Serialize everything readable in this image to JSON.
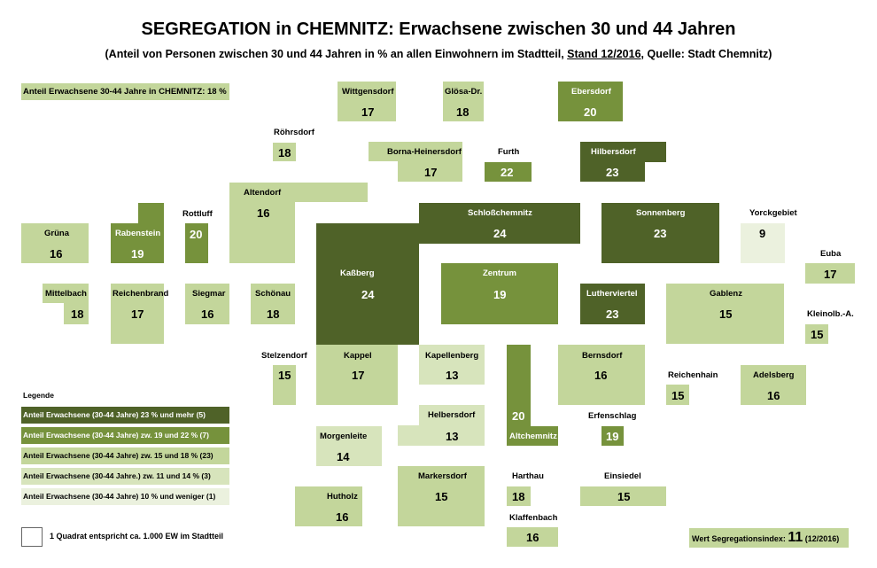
{
  "title": "SEGREGATION in CHEMNITZ: Erwachsene zwischen 30 und 44 Jahren",
  "subtitle": {
    "part1": "(Anteil von Personen zwischen 30 und 44 Jahren in % an allen Einwohnern im Stadtteil, ",
    "stand": "Stand 12/2016",
    "part2": ", Quelle: Stadt Chemnitz)"
  },
  "overall": "Anteil Erwachsene 30-44 Jahre in CHEMNITZ: 18 %",
  "colors": {
    "c1": "#4f6228",
    "c2": "#76923c",
    "c3": "#c3d69b",
    "c4": "#d7e4bc",
    "c5": "#ebf1de"
  },
  "districts": {
    "wittgensdorf": {
      "name": "Wittgensdorf",
      "value": "17"
    },
    "gloesa": {
      "name": "Glösa-Dr.",
      "value": "18"
    },
    "ebersdorf": {
      "name": "Ebersdorf",
      "value": "20"
    },
    "roehrsdorf": {
      "name": "Röhrsdorf",
      "value": "18"
    },
    "borna": {
      "name": "Borna-Heinersdorf",
      "value": "17"
    },
    "furth": {
      "name": "Furth",
      "value": "22"
    },
    "hilbersdorf": {
      "name": "Hilbersdorf",
      "value": "23"
    },
    "altendorf": {
      "name": "Altendorf",
      "value": "16"
    },
    "rottluff": {
      "name": "Rottluff",
      "value": "20"
    },
    "schlosschemnitz": {
      "name": "Schloßchemnitz",
      "value": "24"
    },
    "sonnenberg": {
      "name": "Sonnenberg",
      "value": "23"
    },
    "yorckgebiet": {
      "name": "Yorckgebiet",
      "value": "9"
    },
    "gruena": {
      "name": "Grüna",
      "value": "16"
    },
    "rabenstein": {
      "name": "Rabenstein",
      "value": "19"
    },
    "euba": {
      "name": "Euba",
      "value": "17"
    },
    "kassberg": {
      "name": "Kaßberg",
      "value": "24"
    },
    "zentrum": {
      "name": "Zentrum",
      "value": "19"
    },
    "mittelbach": {
      "name": "Mittelbach",
      "value": "18"
    },
    "reichenbrand": {
      "name": "Reichenbrand",
      "value": "17"
    },
    "siegmar": {
      "name": "Siegmar",
      "value": "16"
    },
    "schoenau": {
      "name": "Schönau",
      "value": "18"
    },
    "lutherviertel": {
      "name": "Lutherviertel",
      "value": "23"
    },
    "gablenz": {
      "name": "Gablenz",
      "value": "15"
    },
    "kleinolbersdorf": {
      "name": "Kleinolb.-A.",
      "value": "15"
    },
    "stelzendorf": {
      "name": "Stelzendorf",
      "value": "15"
    },
    "kappel": {
      "name": "Kappel",
      "value": "17"
    },
    "kapellenberg": {
      "name": "Kapellenberg",
      "value": "13"
    },
    "bernsdorf": {
      "name": "Bernsdorf",
      "value": "16"
    },
    "reichenhain": {
      "name": "Reichenhain",
      "value": "15"
    },
    "adelsberg": {
      "name": "Adelsberg",
      "value": "16"
    },
    "helbersdorf": {
      "name": "Helbersdorf",
      "value": "13"
    },
    "altchemnitz": {
      "name": "Altchemnitz",
      "value": "20"
    },
    "erfenschlag": {
      "name": "Erfenschlag",
      "value": "19"
    },
    "morgenleite": {
      "name": "Morgenleite",
      "value": "14"
    },
    "markersdorf": {
      "name": "Markersdorf",
      "value": "15"
    },
    "harthau": {
      "name": "Harthau",
      "value": "18"
    },
    "einsiedel": {
      "name": "Einsiedel",
      "value": "15"
    },
    "hutholz": {
      "name": "Hutholz",
      "value": "16"
    },
    "klaffenbach": {
      "name": "Klaffenbach",
      "value": "16"
    }
  },
  "legend": {
    "title": "Legende",
    "items": [
      "Anteil Erwachsene (30-44 Jahre) 23 % und mehr (5)",
      "Anteil Erwachsene (30-44 Jahre) zw. 19 und 22 % (7)",
      "Anteil Erwachsene (30-44 Jahre) zw. 15 und 18 % (23)",
      "Anteil Erwachsene (30-44 Jahre.) zw. 11 und 14 % (3)",
      "Anteil Erwachsene (30-44 Jahre) 10 % und weniger (1)"
    ]
  },
  "square_note": "1 Quadrat entspricht ca. 1.000 EW im Stadtteil",
  "index": {
    "label": "Wert Segregationsindex: ",
    "value": "11",
    "suffix": " (12/2016)"
  }
}
